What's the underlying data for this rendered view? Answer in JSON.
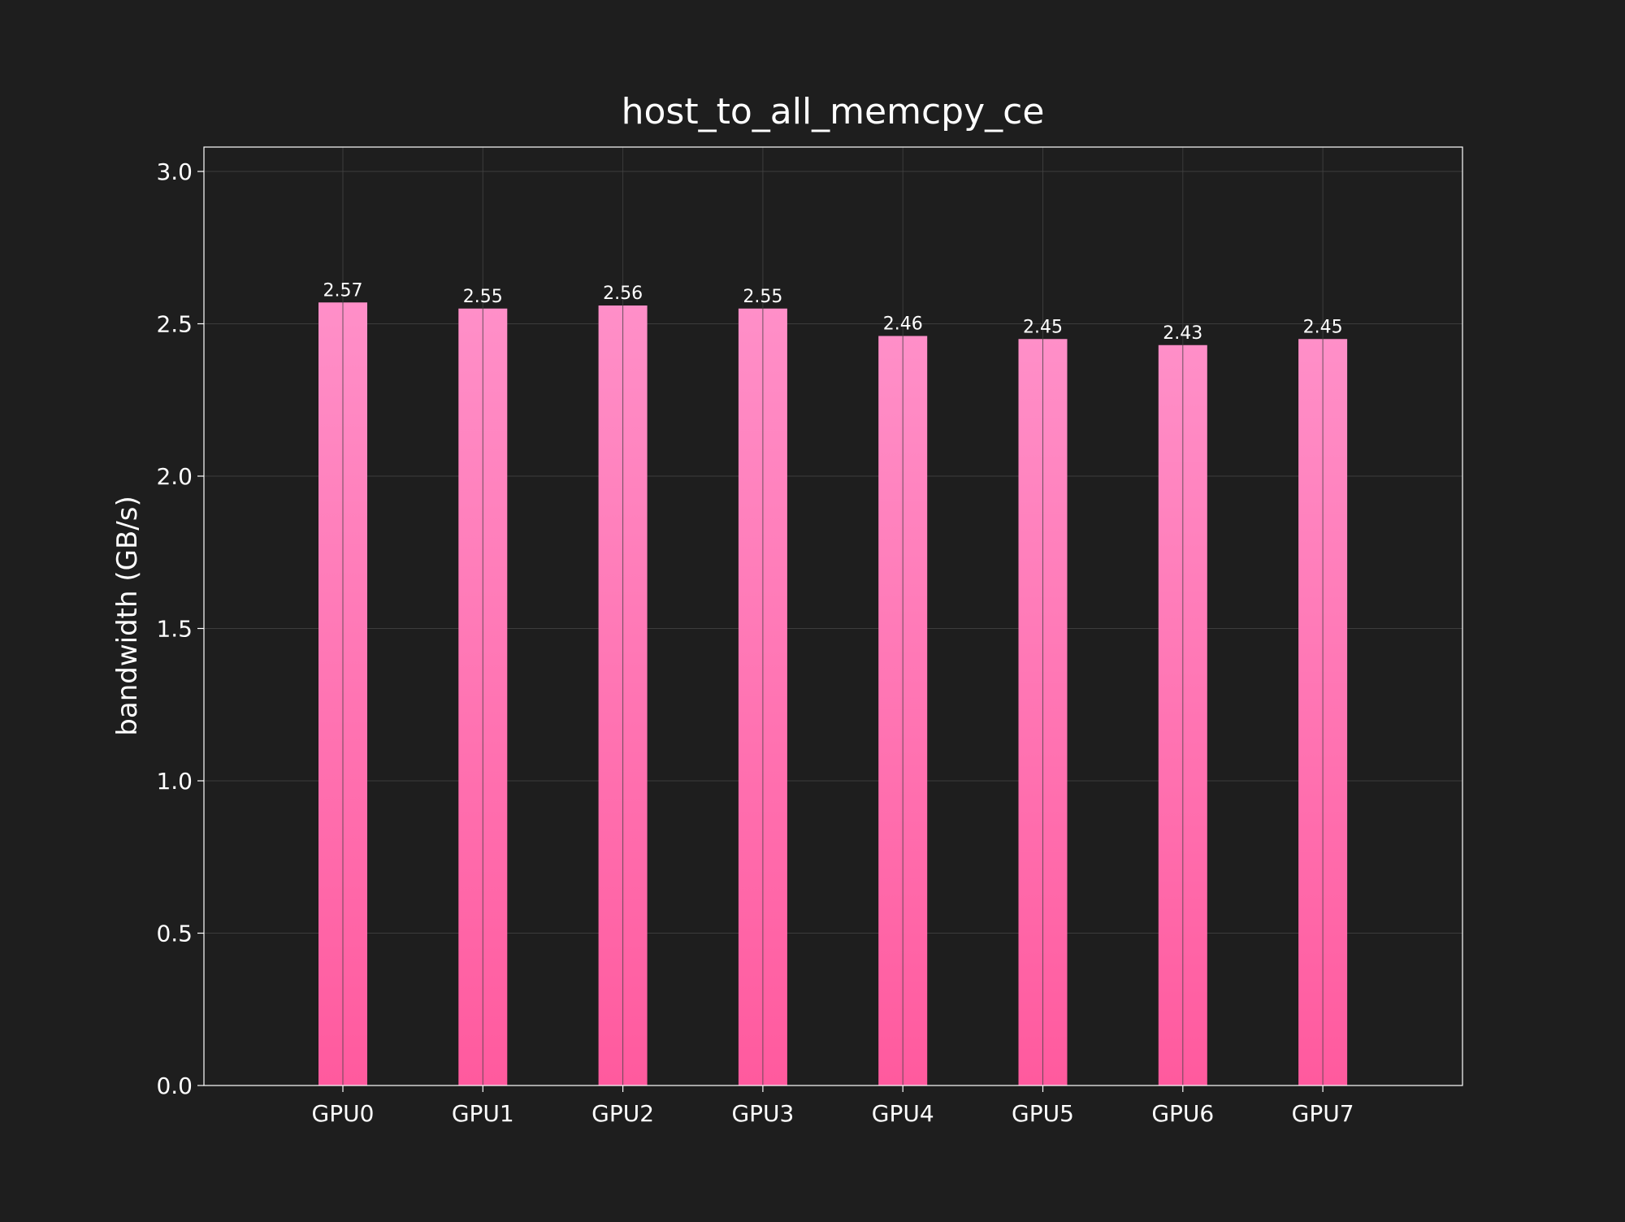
{
  "colors": {
    "background": "#1e1e1e",
    "text": "#ffffff",
    "grid": "#444444",
    "bar_top": "#ff8fc8",
    "bar_bottom": "#ff5a9e",
    "axes_frame": "#ffffff"
  },
  "chart_data": {
    "type": "bar",
    "title": "host_to_all_memcpy_ce",
    "xlabel": "",
    "ylabel": "bandwidth (GB/s)",
    "categories": [
      "GPU0",
      "GPU1",
      "GPU2",
      "GPU3",
      "GPU4",
      "GPU5",
      "GPU6",
      "GPU7"
    ],
    "values": [
      2.57,
      2.55,
      2.56,
      2.55,
      2.46,
      2.45,
      2.43,
      2.45
    ],
    "data_labels": [
      "2.57",
      "2.55",
      "2.56",
      "2.55",
      "2.46",
      "2.45",
      "2.43",
      "2.45"
    ],
    "ylim": [
      0,
      3.08
    ],
    "yticks": [
      0.0,
      0.5,
      1.0,
      1.5,
      2.0,
      2.5,
      3.0
    ],
    "ytick_labels": [
      "0.0",
      "0.5",
      "1.0",
      "1.5",
      "2.0",
      "2.5",
      "3.0"
    ],
    "grid": true,
    "legend": "none"
  }
}
